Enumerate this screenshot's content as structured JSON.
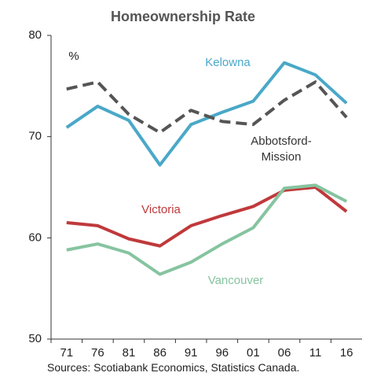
{
  "chart_data": {
    "type": "line",
    "title": "Homeownership Rate",
    "y_unit_label": "%",
    "categories": [
      "71",
      "76",
      "81",
      "86",
      "91",
      "96",
      "01",
      "06",
      "11",
      "16"
    ],
    "series": [
      {
        "name": "Kelowna",
        "color": "#4aa8c8",
        "dash": false,
        "values": [
          70.9,
          73.0,
          71.6,
          67.2,
          71.2,
          72.4,
          73.5,
          77.3,
          76.1,
          73.3
        ]
      },
      {
        "name": "Abbotsford-Mission",
        "color": "#555555",
        "dash": true,
        "values": [
          74.7,
          75.4,
          72.2,
          70.4,
          72.6,
          71.5,
          71.2,
          73.6,
          75.4,
          71.9
        ]
      },
      {
        "name": "Victoria",
        "color": "#c0393b",
        "dash": false,
        "values": [
          61.5,
          61.2,
          59.9,
          59.2,
          61.2,
          62.2,
          63.1,
          64.7,
          65.0,
          62.6
        ]
      },
      {
        "name": "Vancouver",
        "color": "#86c4a0",
        "dash": false,
        "values": [
          58.8,
          59.4,
          58.5,
          56.4,
          57.6,
          59.4,
          61.0,
          64.9,
          65.2,
          63.6
        ]
      }
    ],
    "ylim": [
      50,
      80
    ],
    "yticks": [
      50,
      60,
      70,
      80
    ],
    "source": "Sources: Scotiabank Economics, Statistics Canada."
  }
}
